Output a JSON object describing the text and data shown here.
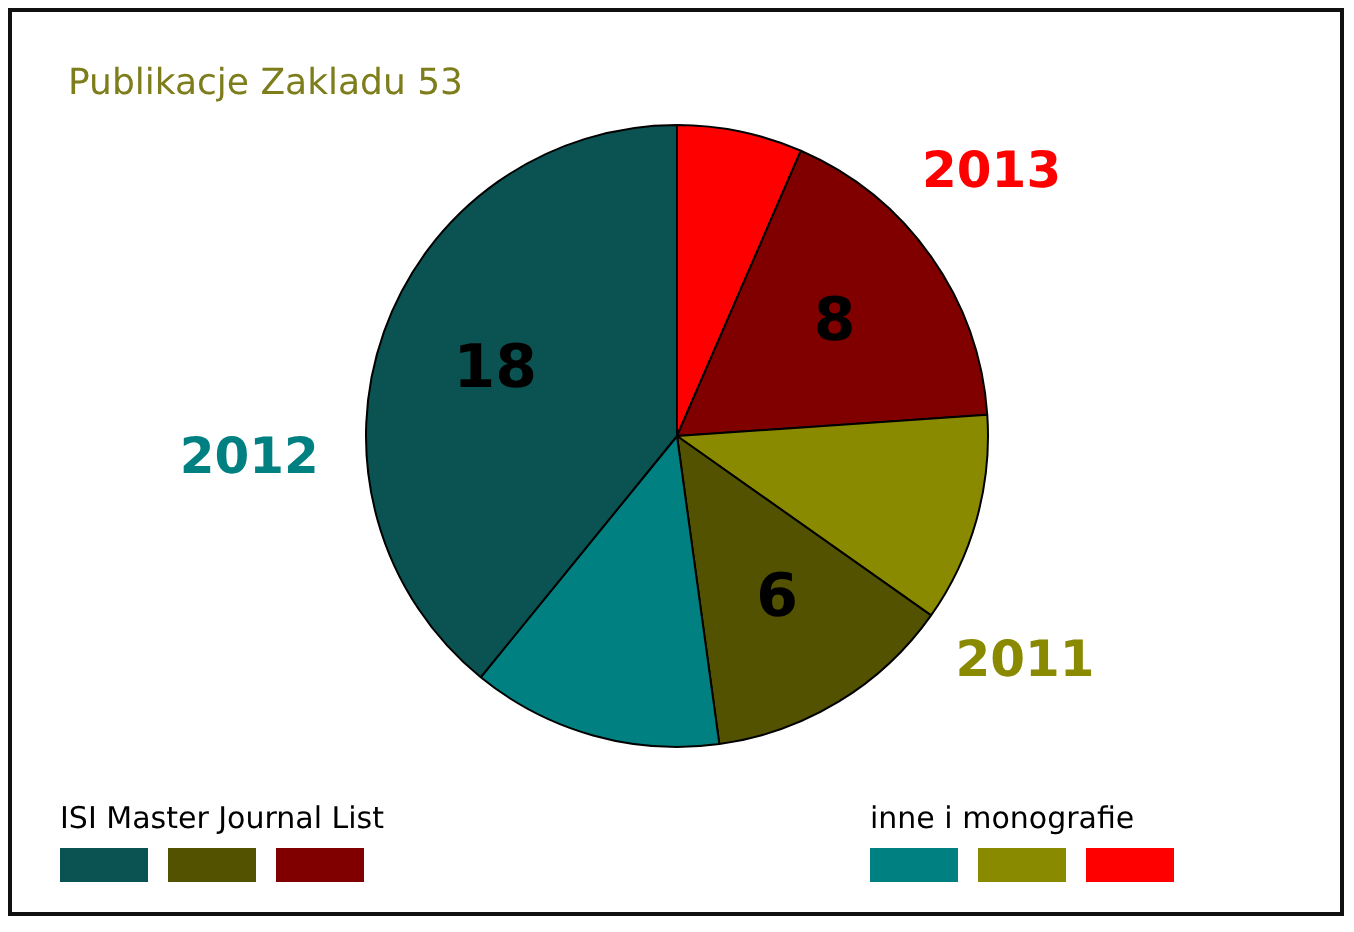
{
  "chart_data": {
    "type": "pie",
    "title": "Publikacje Zakladu 53",
    "categories": [
      "2012",
      null,
      "2011",
      null,
      "2013",
      null
    ],
    "values": [
      18,
      6,
      6,
      5,
      8,
      3
    ],
    "colors": [
      "#0b5252",
      "#008080",
      "#525200",
      "#8a8a00",
      "#800000",
      "#ff0000"
    ],
    "value_labels": [
      "18",
      null,
      "6",
      null,
      "8",
      null
    ],
    "annotations": [
      "ISI Master Journal List",
      "inne i monografie"
    ]
  }
}
